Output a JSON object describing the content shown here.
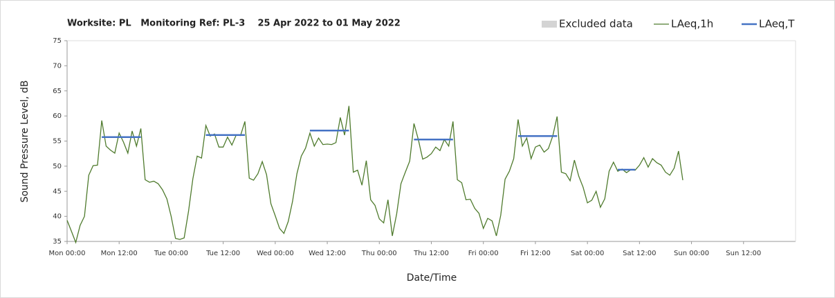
{
  "chart_data": {
    "type": "line",
    "title": "Worksite: PL   Monitoring Ref: PL-3    25 Apr 2022 to 01 May 2022",
    "xlabel": "Date/Time",
    "ylabel": "Sound Pressure Level, dB",
    "excluded": {
      "name": "Excluded data",
      "color": "#d4d4d4"
    },
    "xlim": [
      0,
      168
    ],
    "xticks": [
      {
        "value": 0,
        "label": "Mon 00:00"
      },
      {
        "value": 12,
        "label": "Mon 12:00"
      },
      {
        "value": 24,
        "label": "Tue 00:00"
      },
      {
        "value": 36,
        "label": "Tue 12:00"
      },
      {
        "value": 48,
        "label": "Wed 00:00"
      },
      {
        "value": 60,
        "label": "Wed 12:00"
      },
      {
        "value": 72,
        "label": "Thu 00:00"
      },
      {
        "value": 84,
        "label": "Thu 12:00"
      },
      {
        "value": 96,
        "label": "Fri 00:00"
      },
      {
        "value": 108,
        "label": "Fri 12:00"
      },
      {
        "value": 120,
        "label": "Sat 00:00"
      },
      {
        "value": 132,
        "label": "Sat 12:00"
      },
      {
        "value": 144,
        "label": "Sun 00:00"
      },
      {
        "value": 156,
        "label": "Sun 12:00"
      }
    ],
    "ylim": [
      35,
      75
    ],
    "yticks": [
      35,
      40,
      45,
      50,
      55,
      60,
      65,
      70,
      75
    ],
    "series": [
      {
        "name": "LAeq,1h",
        "color": "#4e7a2c",
        "x": [
          0,
          1,
          2,
          3,
          4,
          5,
          6,
          7,
          8,
          9,
          10,
          11,
          12,
          13,
          14,
          15,
          16,
          17,
          18,
          19,
          20,
          21,
          22,
          23,
          24,
          25,
          26,
          27,
          28,
          29,
          30,
          31,
          32,
          33,
          34,
          35,
          36,
          37,
          38,
          39,
          40,
          41,
          42,
          43,
          44,
          45,
          46,
          47,
          48,
          49,
          50,
          51,
          52,
          53,
          54,
          55,
          56,
          57,
          58,
          59,
          60,
          61,
          62,
          63,
          64,
          65,
          66,
          67,
          68,
          69,
          70,
          71,
          72,
          73,
          74,
          75,
          76,
          77,
          78,
          79,
          80,
          81,
          82,
          83,
          84,
          85,
          86,
          87,
          88,
          89,
          90,
          91,
          92,
          93,
          94,
          95,
          96,
          97,
          98,
          99,
          100,
          101,
          102,
          103,
          104,
          105,
          106,
          107,
          108,
          109,
          110,
          111,
          112,
          113,
          114,
          115,
          116,
          117,
          118,
          119,
          120,
          121,
          122,
          123,
          124,
          125,
          126,
          127,
          128,
          129,
          130,
          131,
          132,
          133,
          134,
          135,
          136,
          137,
          138,
          139,
          140,
          141,
          142
        ],
        "values": [
          39.2,
          37,
          34.8,
          38.2,
          40,
          48.2,
          50.1,
          50.2,
          59.1,
          54,
          53.2,
          52.6,
          56.6,
          54.8,
          52.6,
          57,
          54,
          57.5,
          47.3,
          46.8,
          47,
          46.5,
          45.3,
          43.5,
          40,
          35.6,
          35.4,
          35.7,
          41,
          47.5,
          52,
          51.6,
          58.1,
          56,
          56.4,
          53.8,
          53.8,
          55.8,
          54.2,
          56.2,
          56.1,
          58.9,
          47.6,
          47.2,
          48.5,
          50.9,
          48.3,
          42.5,
          40.1,
          37.6,
          36.6,
          39,
          43,
          48.5,
          52,
          53.6,
          56.6,
          54,
          55.6,
          54.3,
          54.4,
          54.3,
          54.7,
          59.7,
          56.2,
          62,
          48.8,
          49.2,
          46.2,
          51.1,
          43.3,
          42.2,
          39.5,
          38.7,
          43.3,
          36.1,
          40.5,
          46.5,
          48.8,
          51,
          58.5,
          55.3,
          51.4,
          51.8,
          52.5,
          53.8,
          53.1,
          55.3,
          54,
          58.9,
          47.3,
          46.7,
          43.3,
          43.4,
          41.6,
          40.6,
          37.6,
          39.6,
          39.1,
          36.1,
          40.2,
          47.4,
          49,
          51.5,
          59.3,
          54,
          55.6,
          51.5,
          53.8,
          54.2,
          52.8,
          53.5,
          56,
          59.9,
          48.8,
          48.5,
          47.1,
          51.2,
          48,
          45.8,
          42.7,
          43.2,
          45,
          41.8,
          43.5,
          49,
          50.8,
          49,
          49.4,
          48.7,
          49.3,
          49.2,
          50.2,
          51.7,
          49.8,
          51.5,
          50.7,
          50.2,
          48.8,
          48.2,
          49.6,
          53,
          47.2
        ]
      },
      {
        "name": "LAeq,T",
        "color": "#4472c4",
        "x": [
          8,
          17,
          null,
          32,
          41,
          null,
          56,
          65,
          null,
          80,
          89,
          null,
          104,
          113,
          null,
          127,
          131
        ],
        "values": [
          55.8,
          55.8,
          null,
          56.2,
          56.2,
          null,
          57.1,
          57.1,
          null,
          55.3,
          55.3,
          null,
          56,
          56,
          null,
          49.3,
          49.3
        ]
      }
    ]
  }
}
